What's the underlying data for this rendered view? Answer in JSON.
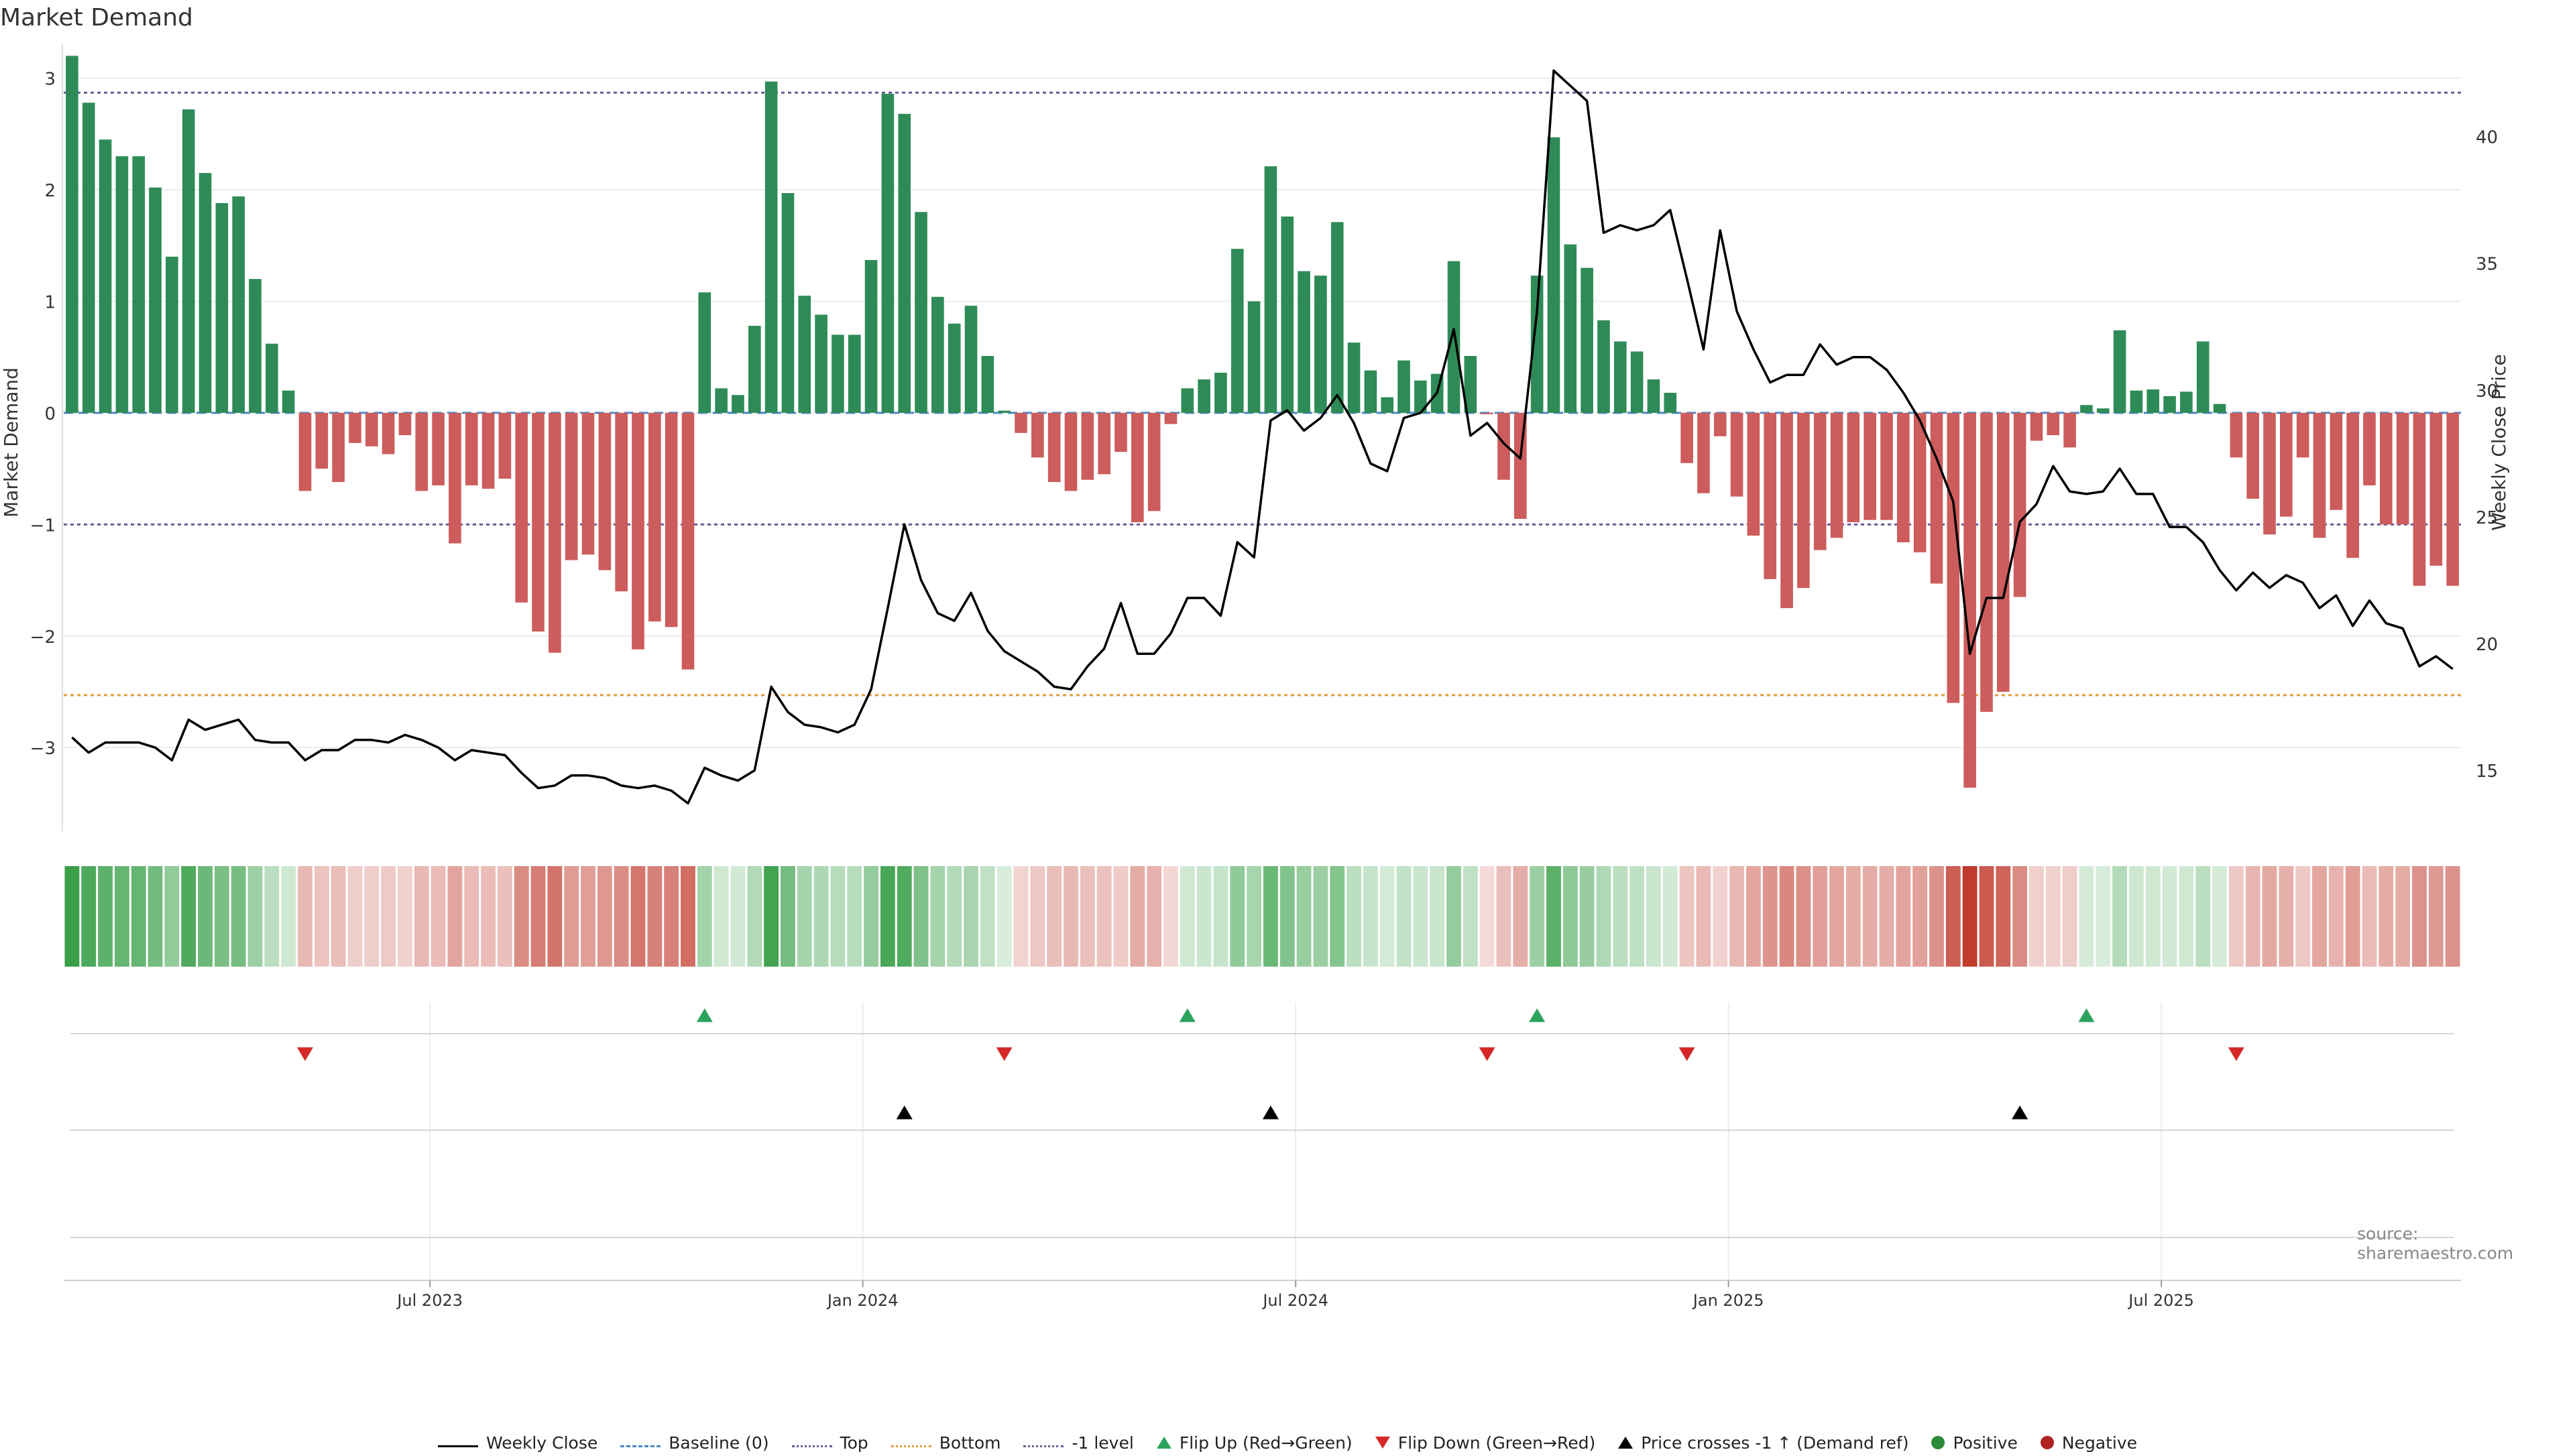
{
  "chart_data": {
    "type": "bar",
    "title": "Market Demand",
    "ylabel": "Market Demand",
    "y2label": "Weekly Close Price",
    "ylim": [
      -3.75,
      3.25
    ],
    "y2lim": [
      12.6,
      43.4
    ],
    "yticks": [
      -3,
      -2,
      -1,
      0,
      1,
      2,
      3
    ],
    "y2ticks": [
      15,
      20,
      25,
      30,
      35,
      40
    ],
    "xticks": [
      {
        "label": "Jul 2023",
        "index": 22
      },
      {
        "label": "Jan 2024",
        "index": 48
      },
      {
        "label": "Jul 2024",
        "index": 74
      },
      {
        "label": "Jan 2025",
        "index": 100
      },
      {
        "label": "Jul 2025",
        "index": 126
      }
    ],
    "reference_lines": {
      "top": 2.87,
      "bottom": -2.53,
      "minus_one": -1,
      "baseline": 0
    },
    "demand": [
      3.2,
      2.78,
      2.45,
      2.3,
      2.3,
      2.02,
      1.4,
      2.72,
      2.15,
      1.88,
      1.94,
      1.2,
      0.62,
      0.2,
      -0.7,
      -0.5,
      -0.62,
      -0.27,
      -0.3,
      -0.37,
      -0.2,
      -0.7,
      -0.65,
      -1.17,
      -0.65,
      -0.68,
      -0.59,
      -1.7,
      -1.96,
      -2.15,
      -1.32,
      -1.27,
      -1.41,
      -1.6,
      -2.12,
      -1.87,
      -1.92,
      -2.3,
      1.08,
      0.22,
      0.16,
      0.78,
      2.97,
      1.97,
      1.05,
      0.88,
      0.7,
      0.7,
      1.37,
      2.86,
      2.68,
      1.8,
      1.04,
      0.8,
      0.96,
      0.51,
      0.02,
      -0.18,
      -0.4,
      -0.62,
      -0.7,
      -0.6,
      -0.55,
      -0.35,
      -0.98,
      -0.88,
      -0.1,
      0.22,
      0.3,
      0.36,
      1.47,
      1.0,
      2.21,
      1.76,
      1.27,
      1.23,
      1.71,
      0.63,
      0.38,
      0.14,
      0.47,
      0.29,
      0.35,
      1.36,
      0.51,
      -0.01,
      -0.6,
      -0.95,
      1.23,
      2.47,
      1.51,
      1.3,
      0.83,
      0.64,
      0.55,
      0.3,
      0.18,
      -0.45,
      -0.72,
      -0.21,
      -0.75,
      -1.1,
      -1.49,
      -1.75,
      -1.57,
      -1.23,
      -1.12,
      -0.98,
      -0.96,
      -0.96,
      -1.16,
      -1.25,
      -1.53,
      -2.6,
      -3.36,
      -2.68,
      -2.5,
      -1.65,
      -0.25,
      -0.2,
      -0.31,
      0.07,
      0.04,
      0.74,
      0.2,
      0.21,
      0.15,
      0.19,
      0.64,
      0.08,
      -0.4,
      -0.77,
      -1.09,
      -0.93,
      -0.4,
      -1.12,
      -0.87,
      -1.3,
      -0.65,
      -1.0,
      -1.0,
      -1.55,
      -1.37,
      -1.55
    ],
    "close": [
      16.3,
      15.7,
      16.1,
      16.1,
      16.1,
      15.9,
      15.4,
      17.0,
      16.6,
      16.8,
      17.0,
      16.2,
      16.1,
      16.1,
      15.4,
      15.8,
      15.8,
      16.2,
      16.2,
      16.1,
      16.4,
      16.2,
      15.9,
      15.4,
      15.8,
      15.7,
      15.6,
      14.9,
      14.3,
      14.4,
      14.8,
      14.8,
      14.7,
      14.4,
      14.3,
      14.4,
      14.2,
      13.7,
      15.1,
      14.8,
      14.6,
      15.0,
      18.3,
      17.3,
      16.8,
      16.7,
      16.5,
      16.8,
      18.2,
      21.4,
      24.7,
      22.5,
      21.2,
      20.9,
      22.0,
      20.5,
      19.7,
      19.3,
      18.9,
      18.3,
      18.2,
      19.1,
      19.8,
      21.6,
      19.6,
      19.6,
      20.4,
      21.8,
      21.8,
      21.1,
      24.0,
      23.4,
      28.8,
      29.2,
      28.4,
      28.9,
      29.8,
      28.7,
      27.1,
      26.8,
      28.9,
      29.1,
      29.9,
      32.4,
      28.2,
      28.7,
      27.9,
      27.3,
      33.1,
      42.6,
      42.0,
      41.4,
      36.2,
      36.5,
      36.3,
      36.5,
      37.1,
      34.4,
      31.6,
      36.3,
      33.1,
      31.6,
      30.3,
      30.6,
      30.6,
      31.8,
      31.0,
      31.3,
      31.3,
      30.8,
      29.9,
      28.8,
      27.3,
      25.6,
      19.6,
      21.8,
      21.8,
      24.8,
      25.5,
      27.0,
      26.0,
      25.9,
      26.0,
      26.9,
      25.9,
      25.9,
      24.6,
      24.6,
      24.0,
      22.9,
      22.1,
      22.8,
      22.2,
      22.7,
      22.4,
      21.4,
      21.9,
      20.7,
      21.7,
      20.8,
      20.6,
      19.1,
      19.5,
      19.0
    ],
    "flip_up_indices": [
      38,
      67,
      88,
      121
    ],
    "flip_down_indices": [
      14,
      56,
      85,
      97,
      130
    ],
    "price_cross_indices": [
      50,
      72,
      117
    ]
  },
  "labels": {
    "title": "Market Demand",
    "y_left": "Market Demand",
    "y_right": "Weekly Close Price",
    "source": "source: sharemaestro.com"
  },
  "legend": [
    {
      "label": "Weekly Close",
      "symbol": "solid-line",
      "color": "#000000"
    },
    {
      "label": "Baseline (0)",
      "symbol": "dashed-line",
      "color": "#4c88c8"
    },
    {
      "label": "Top",
      "symbol": "dotted-line",
      "color": "#6a5a9a"
    },
    {
      "label": "Bottom",
      "symbol": "dotted-line",
      "color": "#e59a3b"
    },
    {
      "label": "-1 level",
      "symbol": "dotted-line",
      "color": "#6a5a9a"
    },
    {
      "label": "Flip Up (Red→Green)",
      "symbol": "triangle-up",
      "color": "#2ca25f"
    },
    {
      "label": "Flip Down (Green→Red)",
      "symbol": "triangle-down",
      "color": "#d62728"
    },
    {
      "label": "Price crosses -1 ↑ (Demand ref)",
      "symbol": "triangle-up",
      "color": "#000000"
    },
    {
      "label": "Positive",
      "symbol": "dot",
      "color": "#2e8b3a"
    },
    {
      "label": "Negative",
      "symbol": "dot",
      "color": "#b22222"
    }
  ],
  "colors": {
    "positive_bar": "#2e8b57",
    "negative_bar": "#cd5c5c",
    "heat_positive": "#2e9a3e",
    "heat_negative": "#c0392b"
  }
}
